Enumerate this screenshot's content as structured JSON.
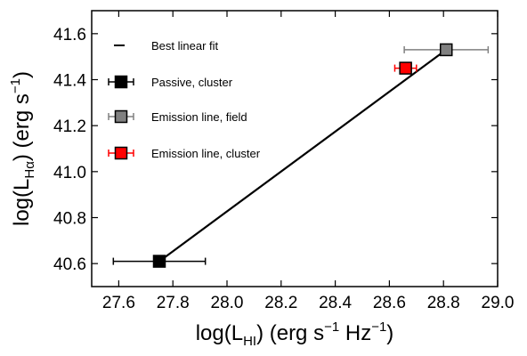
{
  "chart_data": {
    "type": "scatter",
    "xlim": [
      27.5,
      29.0
    ],
    "ylim": [
      40.5,
      41.7
    ],
    "x_ticks": [
      "27.6",
      "27.8",
      "28.0",
      "28.2",
      "28.4",
      "28.6",
      "28.8",
      "29.0"
    ],
    "y_ticks": [
      "40.6",
      "40.8",
      "41.0",
      "41.2",
      "41.4",
      "41.6"
    ],
    "x_tick_values": [
      27.6,
      27.8,
      28.0,
      28.2,
      28.4,
      28.6,
      28.8,
      29.0
    ],
    "y_tick_values": [
      40.6,
      40.8,
      41.0,
      41.2,
      41.4,
      41.6
    ],
    "xlabel": {
      "prefix": "log(L",
      "sub": "HI",
      "suffix": ") (erg s",
      "sup1": "−1",
      "mid": " Hz",
      "sup2": "−1",
      "end": ")"
    },
    "ylabel": {
      "prefix": "log(L",
      "sub": "Hα",
      "suffix": ") (erg s",
      "sup": "−1",
      "end": ")"
    },
    "fit_line": {
      "name": "Best linear fit",
      "x": [
        27.75,
        28.81
      ],
      "y": [
        40.61,
        41.53
      ],
      "color": "#000000"
    },
    "series": [
      {
        "name": "Passive, cluster",
        "color": "#000000",
        "ecolor": "#000000",
        "points": [
          {
            "x": 27.75,
            "y": 40.61,
            "xerr": 0.17
          }
        ]
      },
      {
        "name": "Emission line, field",
        "color": "#808080",
        "ecolor": "#808080",
        "points": [
          {
            "x": 28.81,
            "y": 41.53,
            "xerr": 0.155
          }
        ]
      },
      {
        "name": "Emission line, cluster",
        "color": "#ff0000",
        "ecolor": "#ff0000",
        "points": [
          {
            "x": 28.66,
            "y": 41.45,
            "xerr": 0.04
          }
        ]
      }
    ],
    "legend_position": "top-left",
    "grid": false
  }
}
